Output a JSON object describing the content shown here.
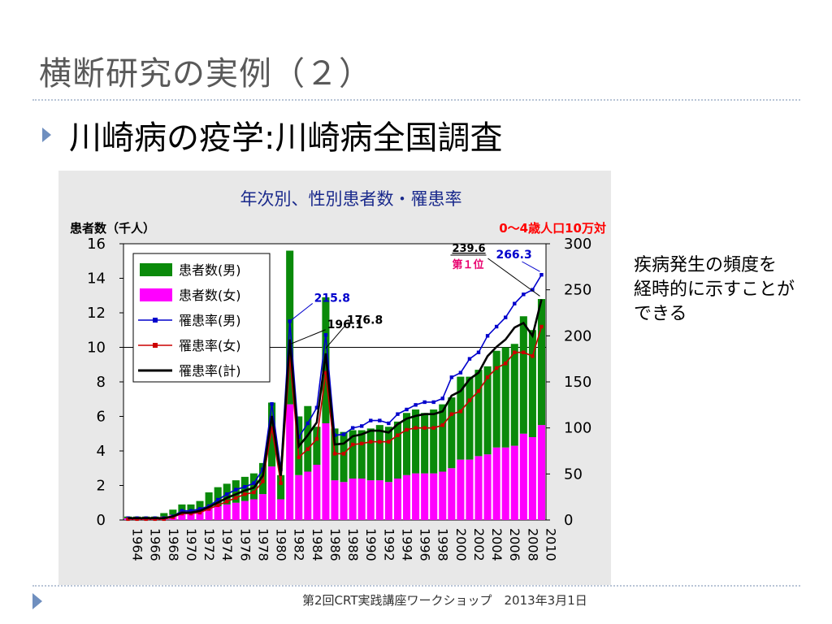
{
  "slide": {
    "title": "横断研究の実例（２）",
    "bullet": "川崎病の疫学:川崎病全国調査",
    "note_lines": [
      "疾病発生の頻度を",
      "経時的に示すことが",
      "できる"
    ],
    "footer": "第2回CRT実践講座ワークショップ　2013年3月1日"
  },
  "chart_data": {
    "type": "bar",
    "title": "年次別、性別患者数・罹患率",
    "ylabel_left": "患者数（千人）",
    "ylabel_right": "0～4歳人口10万対",
    "ylim_left": [
      0,
      16
    ],
    "ylim_right": [
      0,
      300
    ],
    "yticks_left": [
      "0",
      "2",
      "4",
      "6",
      "8",
      "10",
      "12",
      "14",
      "16"
    ],
    "yticks_right": [
      "0",
      "50",
      "100",
      "150",
      "200",
      "250",
      "300"
    ],
    "reference_line_left": 10,
    "years": [
      1964,
      1965,
      1966,
      1967,
      1968,
      1969,
      1970,
      1971,
      1972,
      1973,
      1974,
      1975,
      1976,
      1977,
      1978,
      1979,
      1980,
      1981,
      1982,
      1983,
      1984,
      1985,
      1986,
      1987,
      1988,
      1989,
      1990,
      1991,
      1992,
      1993,
      1994,
      1995,
      1996,
      1997,
      1998,
      1999,
      2000,
      2001,
      2002,
      2003,
      2004,
      2005,
      2006,
      2007,
      2008,
      2009,
      2010
    ],
    "xtick_labels": [
      "1964",
      "1966",
      "1968",
      "1970",
      "1972",
      "1974",
      "1976",
      "1978",
      "1980",
      "1982",
      "1984",
      "1986",
      "1988",
      "1990",
      "1992",
      "1994",
      "1996",
      "1998",
      "2000",
      "2002",
      "2004",
      "2006",
      "2008",
      "2010"
    ],
    "series": [
      {
        "name": "患者数(男)",
        "kind": "stacked-bar",
        "axis": "left",
        "color": "#0a8a0a",
        "values": [
          0.1,
          0.1,
          0.1,
          0.1,
          0.2,
          0.3,
          0.5,
          0.5,
          0.6,
          0.9,
          1.1,
          1.2,
          1.3,
          1.4,
          1.5,
          1.8,
          3.7,
          1.4,
          8.9,
          3.4,
          3.8,
          2.2,
          7.3,
          3.0,
          2.9,
          2.8,
          2.8,
          3.0,
          3.2,
          3.2,
          3.3,
          3.6,
          3.7,
          3.5,
          3.7,
          3.9,
          4.1,
          4.8,
          4.8,
          5.0,
          5.1,
          5.6,
          5.8,
          5.9,
          6.8,
          6.2,
          7.3
        ]
      },
      {
        "name": "患者数(女)",
        "kind": "stacked-bar",
        "axis": "left",
        "color": "#ff00ff",
        "values": [
          0.1,
          0.1,
          0.1,
          0.1,
          0.2,
          0.3,
          0.4,
          0.4,
          0.5,
          0.7,
          0.8,
          0.9,
          1.0,
          1.1,
          1.2,
          1.5,
          3.1,
          1.2,
          6.7,
          2.6,
          2.8,
          3.2,
          5.6,
          2.3,
          2.2,
          2.4,
          2.4,
          2.3,
          2.3,
          2.2,
          2.4,
          2.6,
          2.7,
          2.7,
          2.7,
          2.8,
          3.0,
          3.5,
          3.5,
          3.7,
          3.8,
          4.2,
          4.2,
          4.3,
          5.0,
          4.8,
          5.5
        ]
      },
      {
        "name": "罹患率(男)",
        "kind": "line-marker",
        "axis": "right",
        "color": "#0000cc",
        "values": [
          2,
          2,
          2,
          2,
          2,
          4,
          10,
          10,
          12,
          15,
          22,
          28,
          33,
          36,
          40,
          55,
          126,
          55,
          215.8,
          90,
          105,
          122,
          201,
          92,
          93,
          100,
          102,
          108,
          108,
          105,
          115,
          120,
          125,
          128,
          128,
          132,
          155,
          160,
          175,
          182,
          200,
          210,
          220,
          235,
          245,
          250,
          266.3
        ]
      },
      {
        "name": "罹患率(女)",
        "kind": "line-marker",
        "axis": "right",
        "color": "#cc0000",
        "values": [
          1,
          1,
          1,
          1,
          1,
          3,
          7,
          7,
          8,
          12,
          16,
          20,
          24,
          28,
          30,
          42,
          100,
          40,
          176.8,
          68,
          77,
          88,
          160,
          72,
          72,
          82,
          83,
          85,
          85,
          85,
          92,
          98,
          100,
          100,
          100,
          103,
          115,
          118,
          130,
          140,
          155,
          165,
          170,
          182,
          182,
          178,
          210
        ]
      },
      {
        "name": "罹患率(計)",
        "kind": "line",
        "axis": "right",
        "color": "#000000",
        "values": [
          2,
          2,
          2,
          2,
          2,
          4,
          8,
          8,
          10,
          14,
          19,
          24,
          28,
          32,
          35,
          48,
          113,
          48,
          196.1,
          80,
          92,
          106,
          181,
          82,
          83,
          91,
          93,
          97,
          97,
          95,
          104,
          110,
          113,
          115,
          115,
          118,
          135,
          140,
          153,
          160,
          178,
          188,
          196,
          209,
          214,
          200,
          239.6
        ]
      }
    ],
    "annotations": [
      {
        "text": "215.8",
        "color": "#0000cc"
      },
      {
        "text": "196.1",
        "color": "#000000"
      },
      {
        "text": "176.8",
        "color": "#000000"
      },
      {
        "text": "239.6",
        "color": "#000000"
      },
      {
        "text": "第１位",
        "color": "#e8006e"
      },
      {
        "text": "266.3",
        "color": "#0000cc"
      }
    ]
  }
}
